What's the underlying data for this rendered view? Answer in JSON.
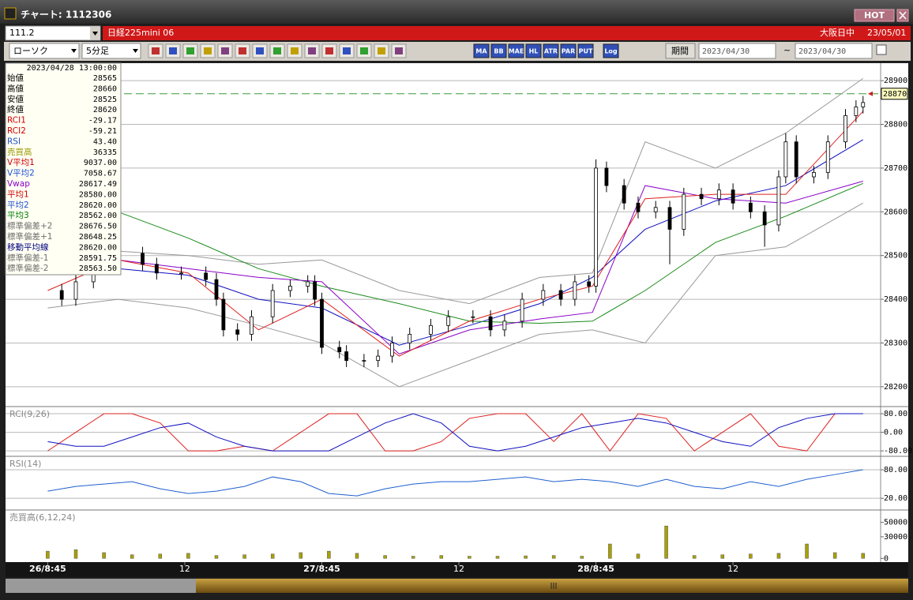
{
  "window": {
    "title": "チャート: 1112306",
    "hot": "HOT"
  },
  "toolbar": {
    "symbol": "111.2",
    "name": "日経225mini 06",
    "market": "大阪日中",
    "date": "23/05/01",
    "chart_type": "ローソク",
    "interval": "5分足",
    "buttons": [
      "MA",
      "BB",
      "MAE",
      "HL",
      "ATR",
      "PAR",
      "PUT",
      "Log"
    ],
    "period": "期間",
    "from": "2023/04/30",
    "tilde": "~",
    "to": "2023/04/30"
  },
  "info": {
    "datetime": "2023/04/28  13:00:00",
    "rows": [
      {
        "label": "始値",
        "value": "28565",
        "color": "#000000"
      },
      {
        "label": "高値",
        "value": "28660",
        "color": "#000000"
      },
      {
        "label": "安値",
        "value": "28525",
        "color": "#000000"
      },
      {
        "label": "終値",
        "value": "28620",
        "color": "#000000"
      },
      {
        "label": "RCI1",
        "value": "-29.17",
        "color": "#d00000"
      },
      {
        "label": "RCI2",
        "value": "-59.21",
        "color": "#d00000"
      },
      {
        "label": "RSI",
        "value": "43.40",
        "color": "#1f4fd0"
      },
      {
        "label": "売買高",
        "value": "36335",
        "color": "#9a9a00"
      },
      {
        "label": "V平均1",
        "value": "9037.00",
        "color": "#d00000"
      },
      {
        "label": "V平均2",
        "value": "7058.67",
        "color": "#1f4fd0"
      },
      {
        "label": "Vwap",
        "value": "28617.49",
        "color": "#8a00c8"
      },
      {
        "label": "平均1",
        "value": "28580.00",
        "color": "#d00000"
      },
      {
        "label": "平均2",
        "value": "28620.00",
        "color": "#1f4fd0"
      },
      {
        "label": "平均3",
        "value": "28562.00",
        "color": "#008000"
      },
      {
        "label": "標準偏差+2",
        "value": "28676.50",
        "color": "#707070"
      },
      {
        "label": "標準偏差+1",
        "value": "28648.25",
        "color": "#707070"
      },
      {
        "label": "移動平均線",
        "value": "28620.00",
        "color": "#000080"
      },
      {
        "label": "標準偏差-1",
        "value": "28591.75",
        "color": "#707070"
      },
      {
        "label": "標準偏差-2",
        "value": "28563.50",
        "color": "#707070"
      }
    ]
  },
  "chart_data": [
    {
      "type": "candlestick",
      "x": [
        4,
        8,
        13,
        20,
        27,
        31,
        38,
        45,
        48,
        50,
        54,
        58,
        64,
        69,
        74,
        76,
        78,
        83,
        85,
        90,
        94,
        98,
        103,
        109,
        114,
        121,
        126,
        130,
        135,
        141,
        146,
        150,
        154,
        156,
        159,
        164,
        168,
        173,
        177,
        181,
        186,
        191,
        195,
        200,
        204,
        208,
        210,
        213,
        218,
        222,
        227,
        230,
        232
      ],
      "open": [
        28420,
        28400,
        28440,
        28500,
        28505,
        28480,
        28460,
        28460,
        28445,
        28400,
        28330,
        28320,
        28360,
        28420,
        28430,
        28440,
        28400,
        28290,
        28280,
        28260,
        28260,
        28270,
        28300,
        28320,
        28340,
        28360,
        28360,
        28330,
        28350,
        28400,
        28420,
        28400,
        28440,
        28430,
        28700,
        28660,
        28620,
        28600,
        28610,
        28560,
        28640,
        28630,
        28650,
        28620,
        28600,
        28570,
        28680,
        28760,
        28680,
        28690,
        28760,
        28820,
        28840
      ],
      "high": [
        28435,
        28455,
        28515,
        28520,
        28520,
        28495,
        28475,
        28475,
        28460,
        28415,
        28345,
        28375,
        28435,
        28445,
        28455,
        28455,
        28415,
        28305,
        28295,
        28275,
        28285,
        28315,
        28335,
        28355,
        28375,
        28375,
        28375,
        28365,
        28415,
        28435,
        28435,
        28455,
        28455,
        28720,
        28715,
        28675,
        28635,
        28625,
        28625,
        28655,
        28655,
        28665,
        28665,
        28635,
        28615,
        28695,
        28780,
        28775,
        28705,
        28775,
        28835,
        28855,
        28865
      ],
      "low": [
        28385,
        28385,
        28425,
        28485,
        28465,
        28445,
        28445,
        28430,
        28385,
        28315,
        28305,
        28305,
        28345,
        28405,
        28415,
        28385,
        28275,
        28265,
        28245,
        28245,
        28245,
        28255,
        28285,
        28305,
        28325,
        28345,
        28315,
        28315,
        28335,
        28385,
        28385,
        28385,
        28415,
        28415,
        28645,
        28605,
        28585,
        28585,
        28480,
        28545,
        28615,
        28615,
        28605,
        28585,
        28520,
        28555,
        28665,
        28665,
        28665,
        28675,
        28745,
        28805,
        28825
      ],
      "close": [
        28400,
        28440,
        28500,
        28505,
        28480,
        28460,
        28460,
        28445,
        28400,
        28330,
        28320,
        28360,
        28420,
        28430,
        28440,
        28400,
        28290,
        28280,
        28260,
        28260,
        28270,
        28300,
        28320,
        28340,
        28360,
        28360,
        28330,
        28350,
        28400,
        28420,
        28400,
        28440,
        28430,
        28700,
        28660,
        28620,
        28600,
        28610,
        28560,
        28640,
        28630,
        28650,
        28620,
        28600,
        28570,
        28680,
        28760,
        28680,
        28690,
        28760,
        28820,
        28840,
        28850
      ],
      "line_x": [
        0,
        20,
        40,
        60,
        78,
        100,
        120,
        140,
        155,
        170,
        190,
        210,
        232
      ],
      "lines": [
        {
          "color": "#999999",
          "values": [
            28520,
            28510,
            28500,
            28480,
            28490,
            28420,
            28390,
            28450,
            28460,
            28760,
            28700,
            28780,
            28905
          ]
        },
        {
          "color": "#999999",
          "values": [
            28380,
            28400,
            28380,
            28340,
            28300,
            28200,
            28260,
            28320,
            28330,
            28300,
            28500,
            28520,
            28620
          ]
        },
        {
          "color": "#1010c0",
          "values": [
            28470,
            28470,
            28455,
            28400,
            28380,
            28295,
            28340,
            28390,
            28450,
            28560,
            28625,
            28660,
            28765
          ]
        },
        {
          "color": "#1a8a1a",
          "values": [
            28650,
            28600,
            28540,
            28470,
            28430,
            28390,
            28350,
            28345,
            28350,
            28420,
            28530,
            28590,
            28665
          ]
        },
        {
          "color": "#8a00c8",
          "values": [
            28490,
            28490,
            28470,
            28450,
            28440,
            28275,
            28330,
            28355,
            28370,
            28660,
            28630,
            28620,
            28670
          ]
        },
        {
          "color": "#e02020",
          "values": [
            28420,
            28490,
            28460,
            28330,
            28400,
            28270,
            28350,
            28400,
            28430,
            28630,
            28640,
            28640,
            28830
          ]
        }
      ],
      "marker_value": 28870,
      "xlim": [
        -12,
        237
      ],
      "xticks": [
        {
          "value": 0,
          "label": "26/8:45"
        },
        {
          "value": 39,
          "label": "12"
        },
        {
          "value": 78,
          "label": "27/8:45"
        },
        {
          "value": 117,
          "label": "12"
        },
        {
          "value": 156,
          "label": "28/8:45"
        },
        {
          "value": 195,
          "label": "12"
        }
      ],
      "ylim": [
        28160,
        28940
      ],
      "yticks": [
        28200,
        28300,
        28400,
        28500,
        28600,
        28700,
        28800,
        28900
      ]
    },
    {
      "type": "line",
      "title": "RCI(9,26)",
      "x": [
        0,
        8,
        16,
        24,
        32,
        40,
        48,
        56,
        64,
        72,
        80,
        88,
        96,
        104,
        112,
        120,
        128,
        136,
        144,
        152,
        160,
        168,
        176,
        184,
        192,
        200,
        208,
        216,
        224,
        232
      ],
      "series": [
        {
          "color": "#e02020",
          "values": [
            -80,
            0,
            80,
            80,
            40,
            -80,
            -80,
            -60,
            -80,
            0,
            80,
            80,
            -80,
            -80,
            -40,
            60,
            80,
            80,
            -40,
            80,
            -80,
            80,
            60,
            -80,
            0,
            80,
            -60,
            -80,
            80,
            80
          ]
        },
        {
          "color": "#1010c0",
          "values": [
            -40,
            -60,
            -60,
            -20,
            20,
            40,
            -20,
            -60,
            -80,
            -80,
            -80,
            -20,
            40,
            80,
            40,
            -60,
            -80,
            -60,
            -20,
            20,
            40,
            60,
            40,
            0,
            -40,
            -60,
            20,
            60,
            80,
            80
          ]
        }
      ],
      "ylim": [
        -100,
        104
      ],
      "yticks": [
        {
          "value": 80,
          "label": "80.00"
        },
        {
          "value": 0,
          "label": "0.00"
        },
        {
          "value": -80,
          "label": "-80.00"
        }
      ]
    },
    {
      "type": "line",
      "title": "RSI(14)",
      "x": [
        0,
        8,
        16,
        24,
        32,
        40,
        48,
        56,
        64,
        72,
        80,
        88,
        96,
        104,
        112,
        120,
        128,
        136,
        144,
        152,
        160,
        168,
        176,
        184,
        192,
        200,
        208,
        216,
        224,
        232
      ],
      "series": [
        {
          "color": "#1f5fd0",
          "values": [
            35,
            45,
            50,
            55,
            40,
            30,
            35,
            45,
            65,
            55,
            30,
            25,
            40,
            50,
            55,
            55,
            60,
            65,
            55,
            60,
            55,
            45,
            60,
            45,
            40,
            55,
            45,
            60,
            70,
            80
          ]
        }
      ],
      "ylim": [
        -3,
        105
      ],
      "yticks": [
        {
          "value": 80,
          "label": "80.00"
        },
        {
          "value": 20,
          "label": "20.00"
        }
      ]
    },
    {
      "type": "bar",
      "title": "売買高(6,12,24)",
      "x": [
        0,
        8,
        16,
        24,
        32,
        40,
        48,
        56,
        64,
        72,
        80,
        88,
        96,
        104,
        112,
        120,
        128,
        136,
        144,
        152,
        160,
        168,
        176,
        184,
        192,
        200,
        208,
        216,
        224,
        232
      ],
      "values": [
        10000,
        12000,
        8000,
        5000,
        6000,
        7000,
        4000,
        5000,
        6000,
        8000,
        10000,
        7000,
        4000,
        3000,
        4000,
        3000,
        3000,
        3500,
        4000,
        3000,
        20000,
        6000,
        45000,
        4000,
        5000,
        6000,
        7000,
        20000,
        8000,
        7000
      ],
      "color": "#a8a000",
      "ylim": [
        -3000,
        65000
      ],
      "yticks": [
        50000,
        30000,
        0
      ]
    }
  ]
}
